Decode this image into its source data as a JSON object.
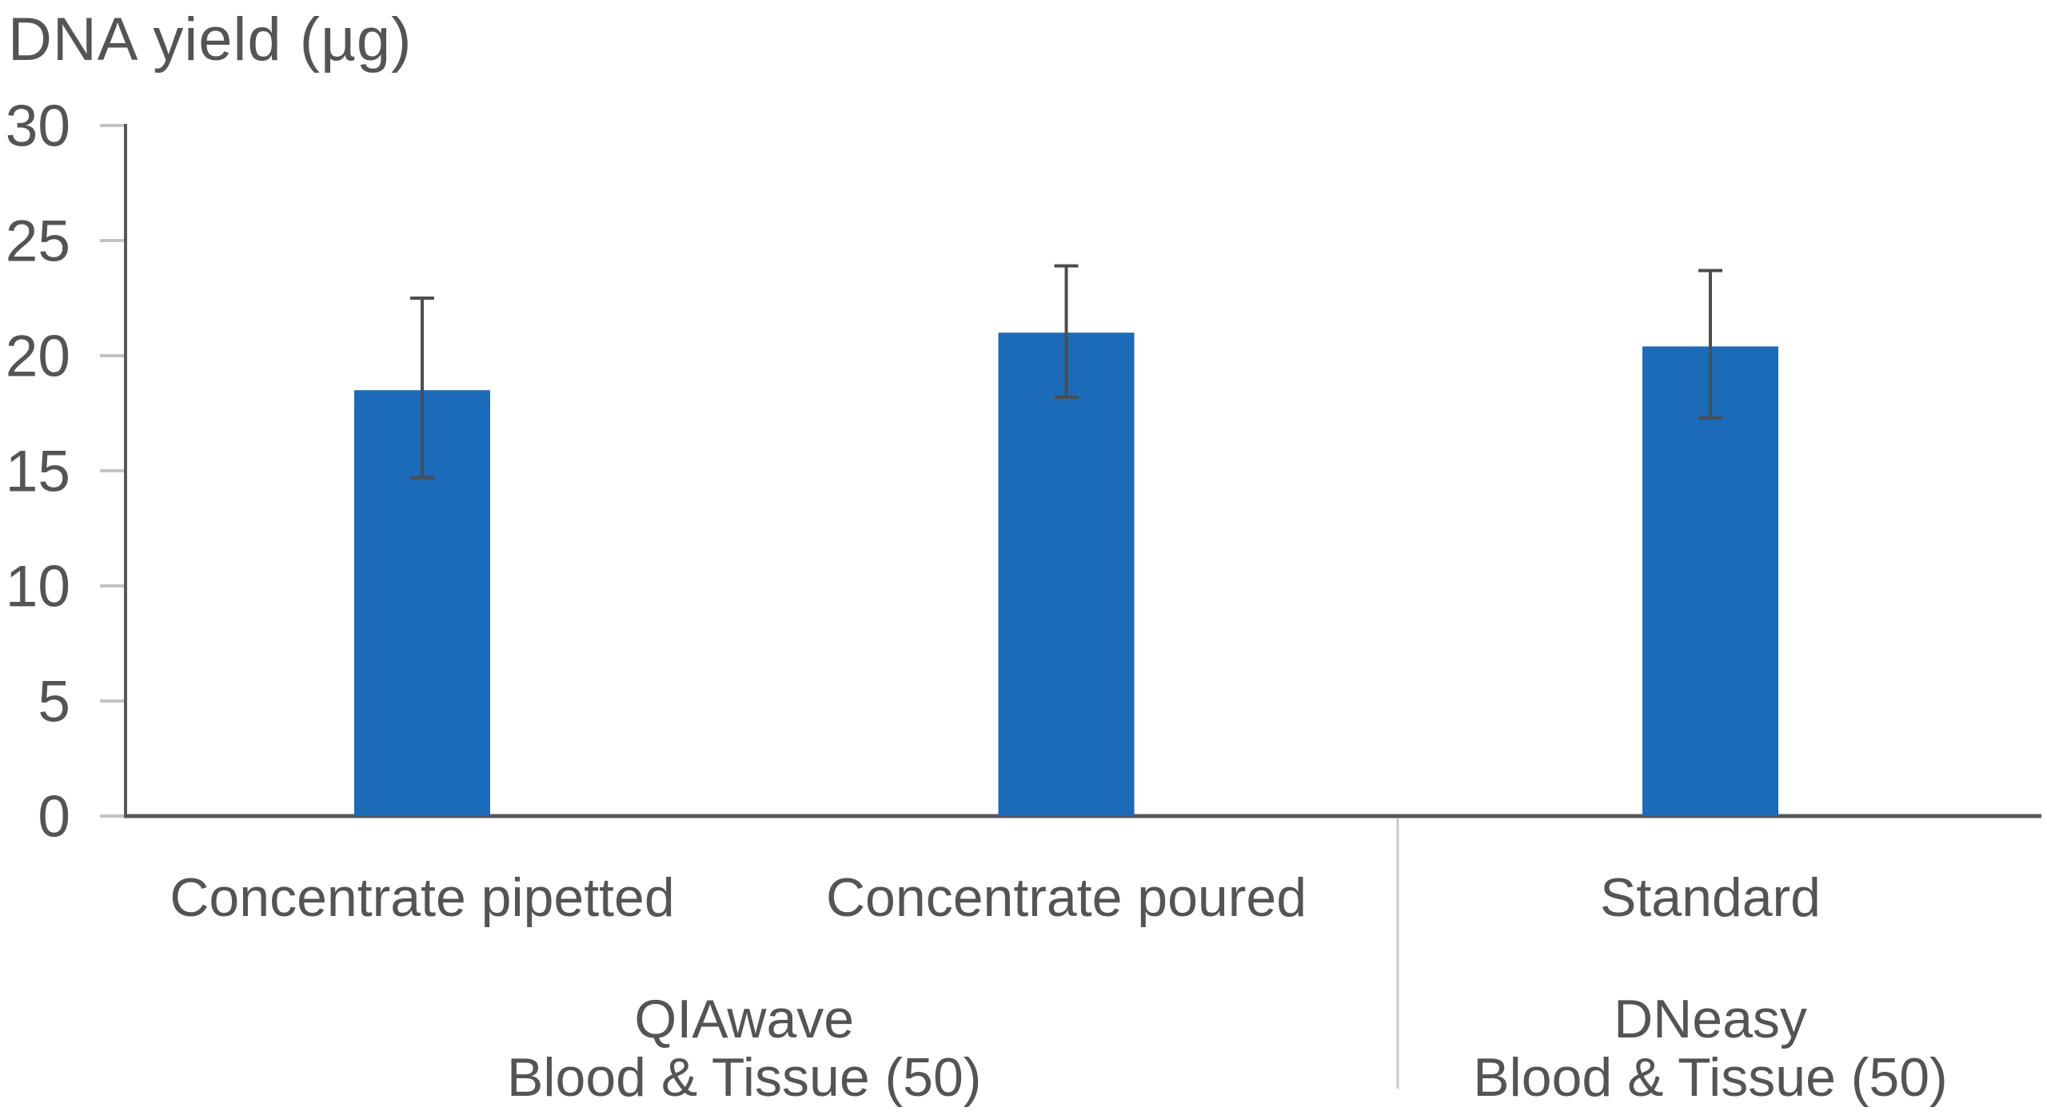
{
  "header": {
    "title": "DNA yield (µg)"
  },
  "colors": {
    "bar": "#1c6bb8",
    "axis": "#58585a",
    "error": "#4d4d4f",
    "tick": "#c3c3c5",
    "divider": "#c9c9ca",
    "text": "#545457"
  },
  "chart_data": {
    "type": "bar",
    "title": "DNA yield (µg)",
    "xlabel": "",
    "ylabel": "DNA yield (µg)",
    "ylim": [
      0,
      30
    ],
    "yticks": [
      0,
      5,
      10,
      15,
      20,
      25,
      30
    ],
    "grid": false,
    "legend": null,
    "categories": [
      "Concentrate pipetted",
      "Concentrate poured",
      "Standard"
    ],
    "values": [
      18.5,
      21.0,
      20.4
    ],
    "errors": [
      {
        "plus": 4.0,
        "minus": 3.8
      },
      {
        "plus": 2.9,
        "minus": 2.8
      },
      {
        "plus": 3.3,
        "minus": 3.1
      }
    ],
    "groups": [
      {
        "lines": [
          "QIAwave",
          "Blood & Tissue (50)"
        ],
        "categories": [
          0,
          1
        ]
      },
      {
        "lines": [
          "DNeasy",
          "Blood & Tissue (50)"
        ],
        "categories": [
          2
        ]
      }
    ]
  }
}
